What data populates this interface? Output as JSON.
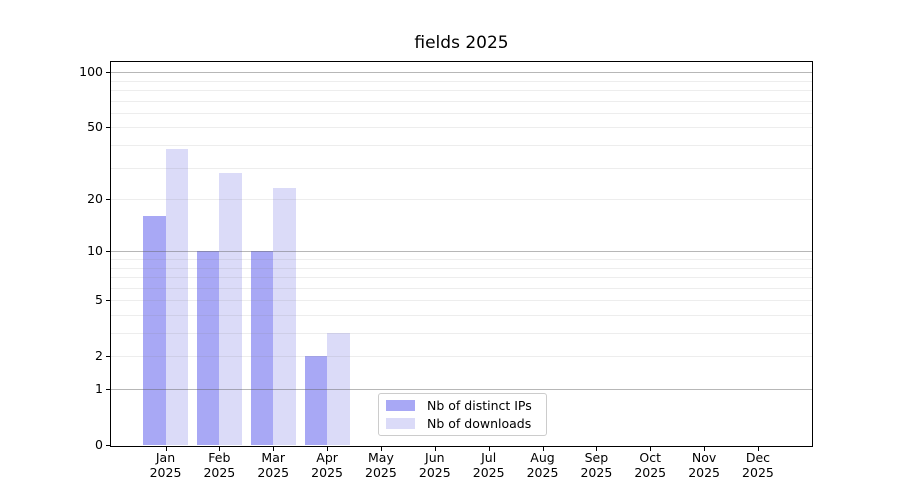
{
  "title": "fields 2025",
  "chart_data": {
    "type": "bar",
    "title": "fields 2025",
    "year_label": "2025",
    "categories": [
      "Jan",
      "Feb",
      "Mar",
      "Apr",
      "May",
      "Jun",
      "Jul",
      "Aug",
      "Sep",
      "Oct",
      "Nov",
      "Dec"
    ],
    "series": [
      {
        "name": "Nb of distinct IPs",
        "color": "#a8a8f5",
        "values": [
          16,
          10,
          10,
          2,
          0,
          0,
          0,
          0,
          0,
          0,
          0,
          0
        ]
      },
      {
        "name": "Nb of downloads",
        "color": "#dbdbf8",
        "values": [
          38,
          28,
          23,
          3,
          0,
          0,
          0,
          0,
          0,
          0,
          0,
          0
        ]
      }
    ],
    "y_axis": {
      "scale": "log(1+v)",
      "ylim": [
        0,
        113.6
      ],
      "tick_values": [
        0,
        1,
        2,
        5,
        10,
        20,
        50,
        100
      ],
      "tick_labels": [
        "0",
        "1",
        "2",
        "5",
        "10",
        "20",
        "50",
        "100"
      ],
      "major_gridlines": [
        1,
        10,
        100
      ],
      "minor_gridlines": [
        2,
        3,
        4,
        5,
        6,
        7,
        8,
        9,
        20,
        30,
        40,
        50,
        60,
        70,
        80,
        90
      ]
    },
    "grid": true,
    "legend_position": "lower center (inside plot)"
  },
  "colors": {
    "bar_distinct_ips": "#a8a8f5",
    "bar_downloads": "#dbdbf8",
    "major_grid": "#b0b0b0",
    "minor_grid": "#ececec",
    "axis_line": "#000000",
    "legend_border": "#cccccc",
    "text": "#000000",
    "background": "#ffffff"
  }
}
